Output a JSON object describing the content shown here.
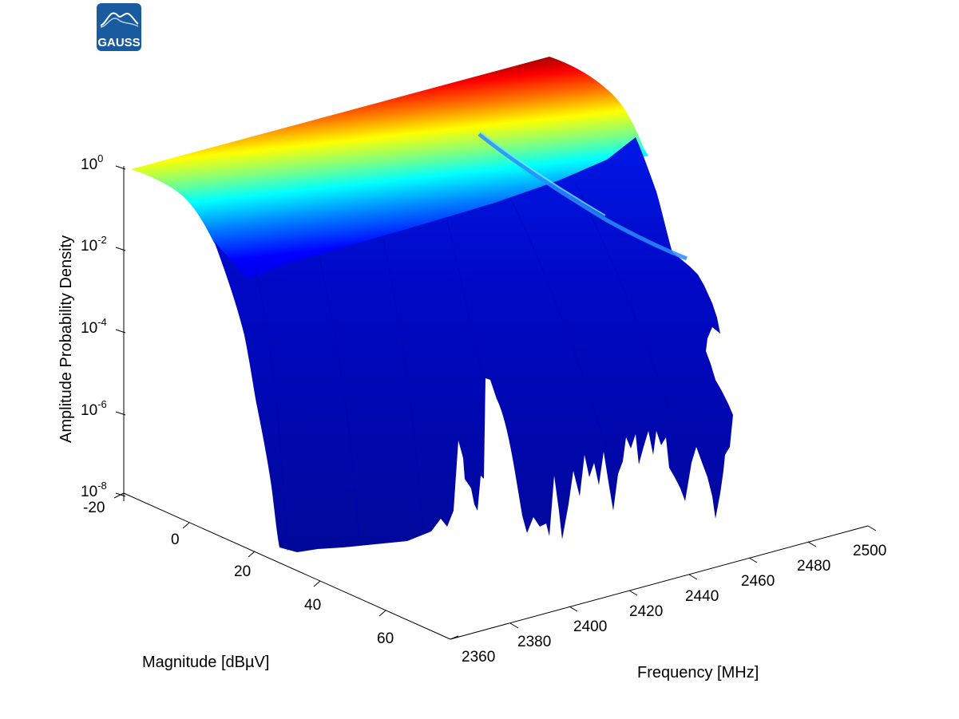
{
  "logo": {
    "text": "GAUSS",
    "color": "#1a5a9e"
  },
  "chart_data": {
    "type": "surface",
    "xlabel": "Frequency [MHz]",
    "ylabel": "Magnitude [dBµV]",
    "zlabel": "Amplitude Probability Density",
    "x_ticks": [
      "2360",
      "2380",
      "2400",
      "2420",
      "2440",
      "2460",
      "2480",
      "2500"
    ],
    "y_ticks": [
      "-20",
      "0",
      "20",
      "40",
      "60"
    ],
    "z_ticks": [
      {
        "base": "10",
        "exp": "0"
      },
      {
        "base": "10",
        "exp": "-2"
      },
      {
        "base": "10",
        "exp": "-4"
      },
      {
        "base": "10",
        "exp": "-6"
      },
      {
        "base": "10",
        "exp": "-8"
      }
    ],
    "xlim": [
      2360,
      2500
    ],
    "ylim": [
      -20,
      70
    ],
    "zlim": [
      1e-08,
      1
    ],
    "z_scale": "log",
    "colormap": "jet",
    "colormap_colors": [
      "#00008f",
      "#0000ff",
      "#0080ff",
      "#00ffff",
      "#80ff80",
      "#ffff00",
      "#ff8000",
      "#ff0000",
      "#800000"
    ]
  }
}
